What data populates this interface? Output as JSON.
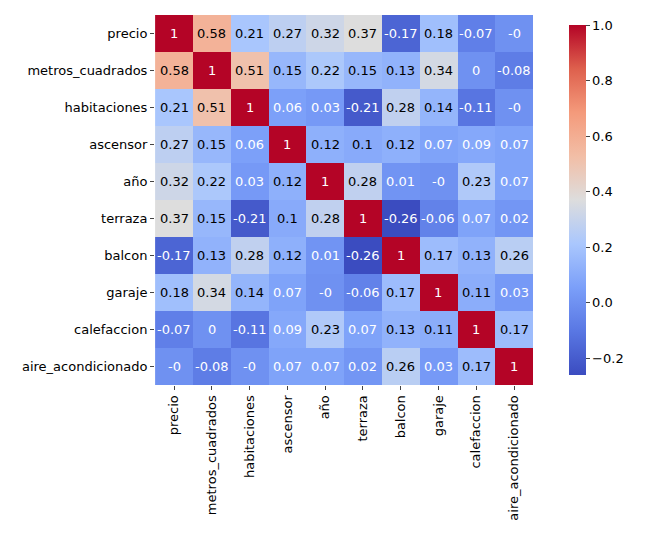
{
  "chart_data": {
    "type": "heatmap",
    "color": "coolwarm",
    "data_labels": true,
    "categories": [
      "precio",
      "metros_cuadrados",
      "habitaciones",
      "ascensor",
      "año",
      "terraza",
      "balcon",
      "garaje",
      "calefaccion",
      "aire_acondicionado"
    ],
    "values": [
      [
        1,
        0.58,
        0.21,
        0.27,
        0.32,
        0.37,
        -0.17,
        0.18,
        -0.07,
        0
      ],
      [
        0.58,
        1,
        0.51,
        0.15,
        0.22,
        0.15,
        0.13,
        0.34,
        0,
        -0.08
      ],
      [
        0.21,
        0.51,
        1,
        0.06,
        0.03,
        -0.21,
        0.28,
        0.14,
        -0.11,
        0
      ],
      [
        0.27,
        0.15,
        0.06,
        1,
        0.12,
        0.1,
        0.12,
        0.07,
        0.09,
        0.07
      ],
      [
        0.32,
        0.22,
        0.03,
        0.12,
        1,
        0.28,
        0.01,
        0,
        0.23,
        0.07
      ],
      [
        0.37,
        0.15,
        -0.21,
        0.1,
        0.28,
        1,
        -0.26,
        -0.06,
        0.07,
        0.02
      ],
      [
        -0.17,
        0.13,
        0.28,
        0.12,
        0.01,
        -0.26,
        1,
        0.17,
        0.13,
        0.26
      ],
      [
        0.18,
        0.34,
        0.14,
        0.07,
        0,
        -0.06,
        0.17,
        1,
        0.11,
        0.03
      ],
      [
        -0.07,
        0,
        -0.11,
        0.09,
        0.23,
        0.07,
        0.13,
        0.11,
        1,
        0.17
      ],
      [
        0,
        -0.08,
        0,
        0.07,
        0.07,
        0.02,
        0.26,
        0.03,
        0.17,
        1
      ]
    ],
    "value_labels": [
      [
        "1",
        "0.58",
        "0.21",
        "0.27",
        "0.32",
        "0.37",
        "-0.17",
        "0.18",
        "-0.07",
        "-0"
      ],
      [
        "0.58",
        "1",
        "0.51",
        "0.15",
        "0.22",
        "0.15",
        "0.13",
        "0.34",
        "0",
        "-0.08"
      ],
      [
        "0.21",
        "0.51",
        "1",
        "0.06",
        "0.03",
        "-0.21",
        "0.28",
        "0.14",
        "-0.11",
        "-0"
      ],
      [
        "0.27",
        "0.15",
        "0.06",
        "1",
        "0.12",
        "0.1",
        "0.12",
        "0.07",
        "0.09",
        "0.07"
      ],
      [
        "0.32",
        "0.22",
        "0.03",
        "0.12",
        "1",
        "0.28",
        "0.01",
        "-0",
        "0.23",
        "0.07"
      ],
      [
        "0.37",
        "0.15",
        "-0.21",
        "0.1",
        "0.28",
        "1",
        "-0.26",
        "-0.06",
        "0.07",
        "0.02"
      ],
      [
        "-0.17",
        "0.13",
        "0.28",
        "0.12",
        "0.01",
        "-0.26",
        "1",
        "0.17",
        "0.13",
        "0.26"
      ],
      [
        "0.18",
        "0.34",
        "0.14",
        "0.07",
        "-0",
        "-0.06",
        "0.17",
        "1",
        "0.11",
        "0.03"
      ],
      [
        "-0.07",
        "0",
        "-0.11",
        "0.09",
        "0.23",
        "0.07",
        "0.13",
        "0.11",
        "1",
        "0.17"
      ],
      [
        "-0",
        "-0.08",
        "-0",
        "0.07",
        "0.07",
        "0.02",
        "0.26",
        "0.03",
        "0.17",
        "1"
      ]
    ],
    "zlim": [
      -0.26,
      1
    ],
    "zticks": [
      {
        "value": -0.2,
        "label": "−0.2"
      },
      {
        "value": 0,
        "label": "0.0"
      },
      0.2,
      0.4,
      0.6,
      0.8,
      {
        "value": 1,
        "label": "1.0"
      }
    ]
  }
}
